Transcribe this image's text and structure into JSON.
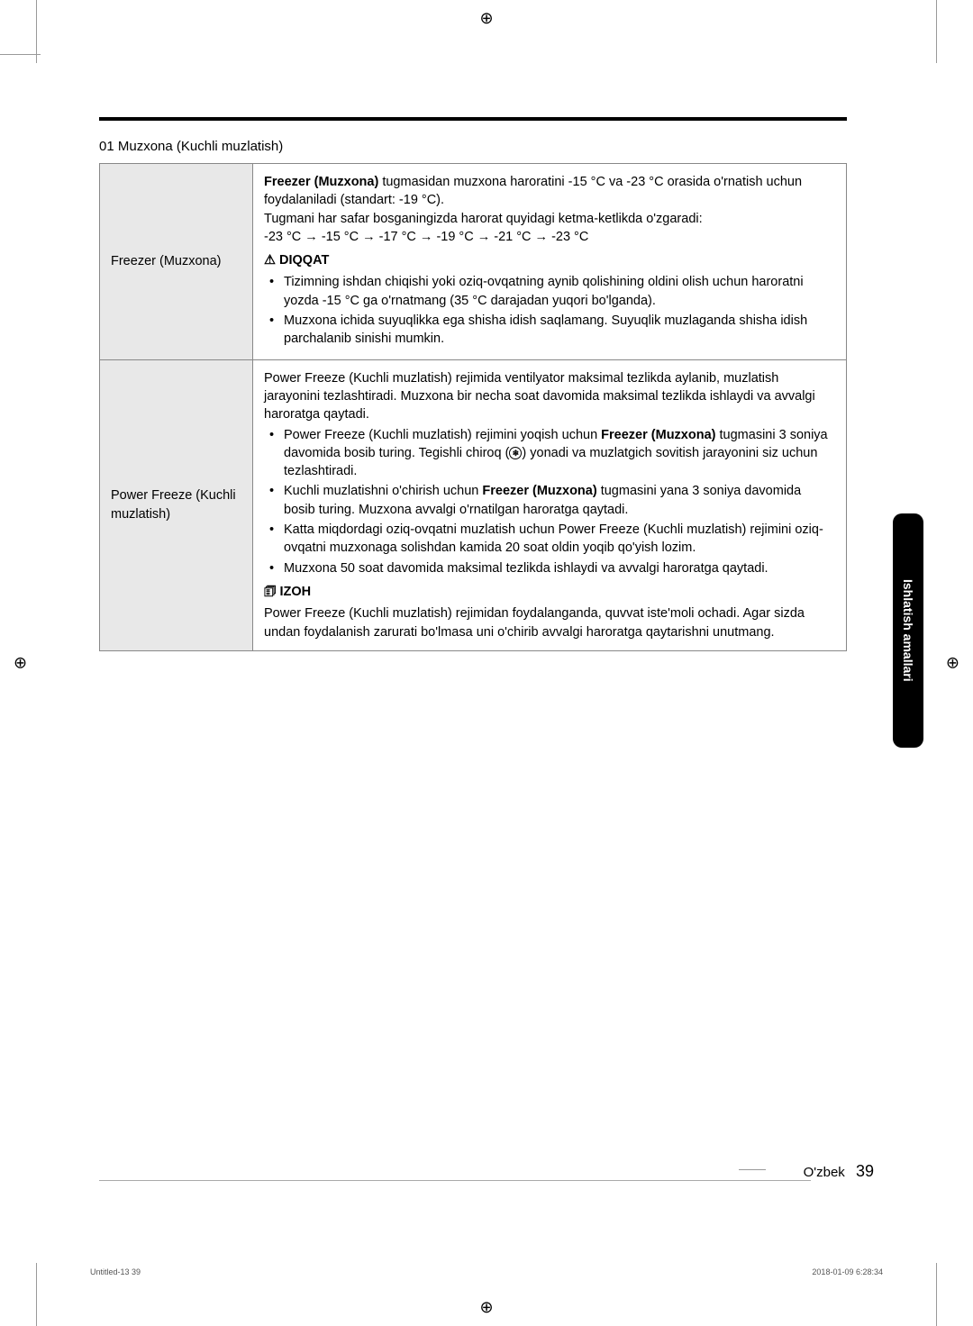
{
  "print_marks": {
    "glyph": "⊕"
  },
  "section": {
    "heading": "01 Muzxona (Kuchli muzlatish)"
  },
  "side_tab": {
    "label": "Ishlatish amallari",
    "bg_color": "#000000",
    "text_color": "#ffffff"
  },
  "table": {
    "rows": [
      {
        "label": "Freezer (Muzxona)",
        "intro_parts": {
          "bold1": "Freezer (Muzxona)",
          "text1": " tugmasidan muzxona haroratini -15 °C va -23 °C orasida o'rnatish uchun foydalaniladi (standart: -19 °C).",
          "text2": "Tugmani har safar bosganingizda harorat quyidagi ketma-ketlikda o'zgaradi:",
          "text3": "-23 °C → -15 °C → -17 °C → -19 °C → -21 °C → -23 °C"
        },
        "warn_icon": "⚠",
        "warn_label": "DIQQAT",
        "bullets": [
          "Tizimning ishdan chiqishi yoki oziq-ovqatning aynib qolishining oldini olish uchun haroratni yozda -15 °C ga o'rnatmang (35 °C darajadan yuqori bo'lganda).",
          "Muzxona ichida suyuqlikka ega shisha idish saqlamang. Suyuqlik muzlaganda shisha idish parchalanib sinishi mumkin."
        ]
      },
      {
        "label": "Power Freeze (Kuchli muzlatish)",
        "intro_text": "Power Freeze (Kuchli muzlatish) rejimida ventilyator maksimal tezlikda aylanib, muzlatish jarayonini tezlashtiradi. Muzxona bir necha soat davomida maksimal tezlikda ishlaydi va avvalgi haroratga qaytadi.",
        "bullets": [
          {
            "pre": "Power Freeze (Kuchli muzlatish) rejimini yoqish uchun ",
            "bold": "Freezer (Muzxona)",
            "mid": " tugmasini 3 soniya davomida bosib turing. Tegishli chiroq (",
            "icon": "❄",
            "post": ") yonadi va muzlatgich sovitish jarayonini siz uchun tezlashtiradi."
          },
          {
            "pre": "Kuchli muzlatishni o'chirish uchun ",
            "bold": "Freezer (Muzxona)",
            "post": " tugmasini yana 3 soniya davomida bosib turing. Muzxona avvalgi o'rnatilgan haroratga qaytadi."
          },
          {
            "pre": "Katta miqdordagi oziq-ovqatni muzlatish uchun Power Freeze (Kuchli muzlatish)  rejimini oziq-ovqatni muzxonaga solishdan kamida 20 soat oldin yoqib qo'yish lozim."
          },
          {
            "pre": "Muzxona 50 soat davomida maksimal tezlikda ishlaydi va avvalgi haroratga qaytadi."
          }
        ],
        "note_icon": "🗊",
        "note_label": "IZOH",
        "note_text": "Power Freeze (Kuchli muzlatish) rejimidan foydalanganda, quvvat iste'moli ochadi. Agar sizda undan foydalanish zarurati bo'lmasa uni o'chirib avvalgi haroratga qaytarishni unutmang."
      }
    ]
  },
  "footer": {
    "language": "O'zbek",
    "page_number": "39",
    "meta_left": "Untitled-13   39",
    "meta_right": "2018-01-09   6:28:34"
  }
}
